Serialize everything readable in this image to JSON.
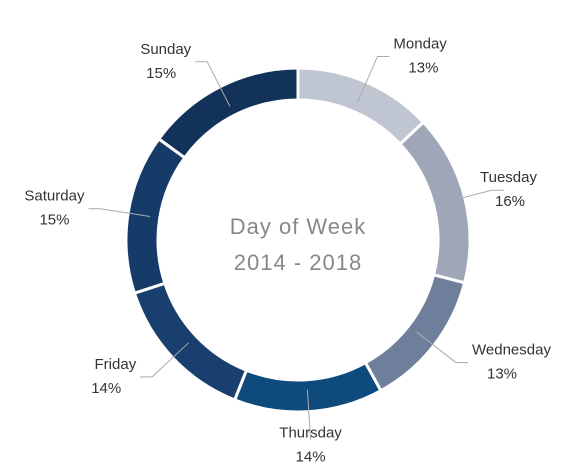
{
  "chart_data": {
    "type": "donut",
    "title": "Day of Week",
    "subtitle": "2014 - 2018",
    "categories": [
      "Monday",
      "Tuesday",
      "Wednesday",
      "Thursday",
      "Friday",
      "Saturday",
      "Sunday"
    ],
    "values": [
      13,
      16,
      13,
      14,
      14,
      15,
      15
    ],
    "value_labels": [
      "13%",
      "16%",
      "13%",
      "14%",
      "14%",
      "15%",
      "15%"
    ],
    "colors": [
      "#c0c5d2",
      "#9ea6b8",
      "#6f7f9b",
      "#0e4a7c",
      "#183f6e",
      "#163b69",
      "#13325a"
    ]
  }
}
